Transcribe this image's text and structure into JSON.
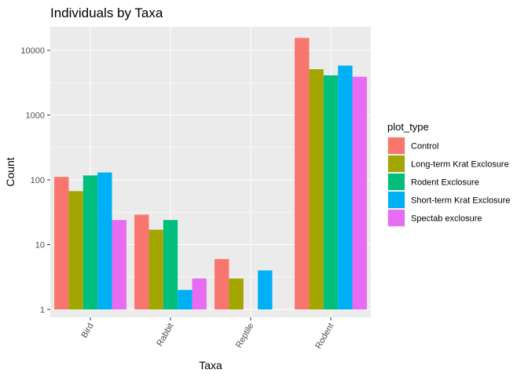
{
  "chart_data": {
    "type": "bar",
    "title": "Individuals by Taxa",
    "xlabel": "Taxa",
    "ylabel": "Count",
    "y_scale": "log10",
    "ylim": [
      1,
      20000
    ],
    "y_ticks": [
      1,
      10,
      100,
      1000,
      10000
    ],
    "y_tick_labels": [
      "1",
      "10",
      "100",
      "1000",
      "10000"
    ],
    "categories": [
      "Bird",
      "Rabbit",
      "Reptile",
      "Rodent"
    ],
    "legend": {
      "title": "plot_type",
      "position": "right"
    },
    "grid": true,
    "series": [
      {
        "name": "Control",
        "color": "#F8766D",
        "values": [
          111,
          29,
          6,
          15500
        ]
      },
      {
        "name": "Long-term Krat Exclosure",
        "color": "#A3A500",
        "values": [
          67,
          17,
          3,
          5100
        ]
      },
      {
        "name": "Rodent Exclosure",
        "color": "#00BF7D",
        "values": [
          117,
          24,
          null,
          4100
        ]
      },
      {
        "name": "Short-term Krat Exclosure",
        "color": "#00B0F6",
        "values": [
          130,
          2,
          4,
          5800
        ]
      },
      {
        "name": "Spectab exclosure",
        "color": "#E76BF3",
        "values": [
          24,
          3,
          null,
          3900
        ]
      }
    ]
  }
}
